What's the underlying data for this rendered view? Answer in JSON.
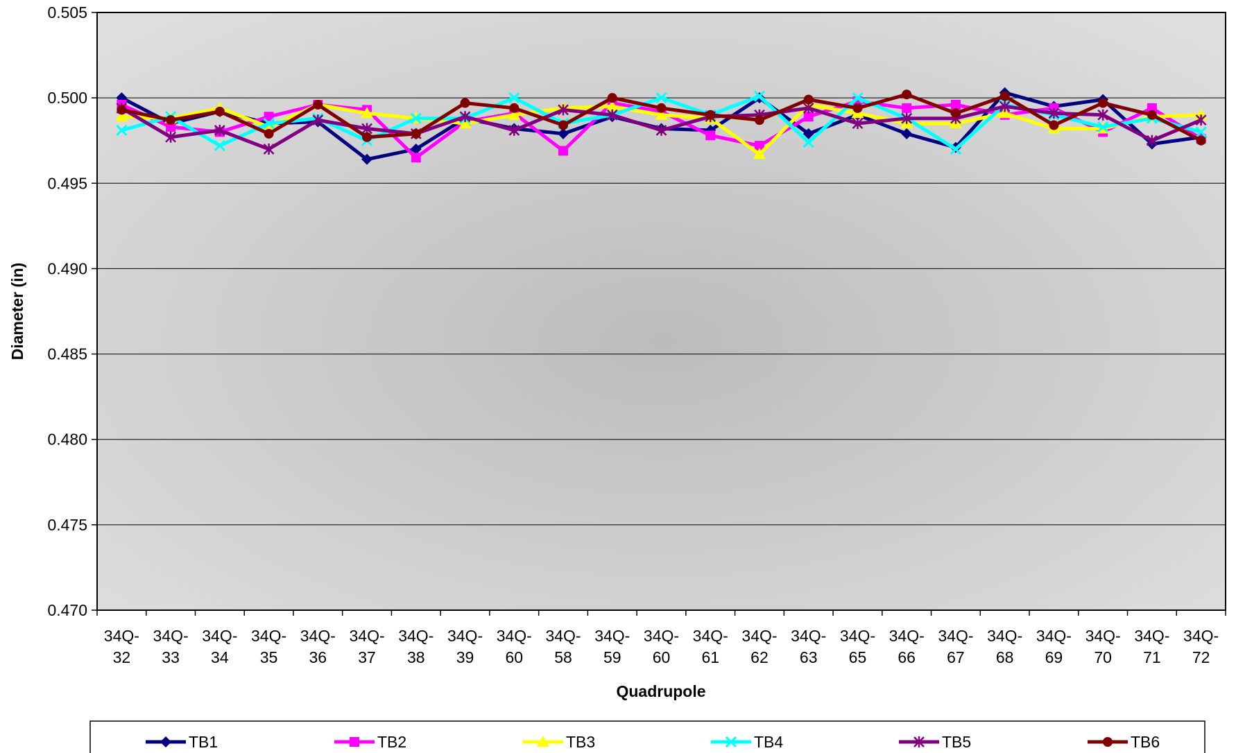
{
  "chart_data": {
    "type": "line",
    "title": "",
    "xlabel": "Quadrupole",
    "ylabel": "Diameter (in)",
    "ylim": [
      0.47,
      0.505
    ],
    "yticks": [
      "0.470",
      "0.475",
      "0.480",
      "0.485",
      "0.490",
      "0.495",
      "0.500",
      "0.505"
    ],
    "categories": [
      [
        "34Q-",
        "32"
      ],
      [
        "34Q-",
        "33"
      ],
      [
        "34Q-",
        "34"
      ],
      [
        "34Q-",
        "35"
      ],
      [
        "34Q-",
        "36"
      ],
      [
        "34Q-",
        "37"
      ],
      [
        "34Q-",
        "38"
      ],
      [
        "34Q-",
        "39"
      ],
      [
        "34Q-",
        "60"
      ],
      [
        "34Q-",
        "58"
      ],
      [
        "34Q-",
        "59"
      ],
      [
        "34Q-",
        "60"
      ],
      [
        "34Q-",
        "61"
      ],
      [
        "34Q-",
        "62"
      ],
      [
        "34Q-",
        "63"
      ],
      [
        "34Q-",
        "65"
      ],
      [
        "34Q-",
        "66"
      ],
      [
        "34Q-",
        "67"
      ],
      [
        "34Q-",
        "68"
      ],
      [
        "34Q-",
        "69"
      ],
      [
        "34Q-",
        "70"
      ],
      [
        "34Q-",
        "71"
      ],
      [
        "34Q-",
        "72"
      ]
    ],
    "grid": true,
    "legend_position": "bottom",
    "series": [
      {
        "name": "TB1",
        "color": "#000080",
        "marker": "diamond",
        "values": [
          0.5,
          0.4985,
          0.4992,
          0.4985,
          0.4986,
          0.4964,
          0.497,
          0.4988,
          0.4982,
          0.4979,
          0.4989,
          0.4982,
          0.4981,
          0.5,
          0.4979,
          0.499,
          0.4979,
          0.4971,
          0.5003,
          0.4995,
          0.4999,
          0.4973,
          0.4977
        ]
      },
      {
        "name": "TB2",
        "color": "#ff00ff",
        "marker": "square",
        "values": [
          0.4996,
          0.4983,
          0.498,
          0.4989,
          0.4996,
          0.4993,
          0.4965,
          0.4986,
          0.4991,
          0.4969,
          0.4997,
          0.4992,
          0.4978,
          0.4972,
          0.4989,
          0.4998,
          0.4994,
          0.4996,
          0.499,
          0.4994,
          0.498,
          0.4994,
          0.4976
        ]
      },
      {
        "name": "TB3",
        "color": "#ffff00",
        "marker": "triangle",
        "values": [
          0.4989,
          0.4988,
          0.4994,
          0.4983,
          0.4996,
          0.4991,
          0.4988,
          0.4985,
          0.499,
          0.4994,
          0.4995,
          0.499,
          0.4988,
          0.4967,
          0.4996,
          0.4991,
          0.4985,
          0.4985,
          0.4991,
          0.4982,
          0.4982,
          0.4989,
          0.499
        ]
      },
      {
        "name": "TB4",
        "color": "#00ffff",
        "marker": "x",
        "values": [
          0.4981,
          0.4989,
          0.4972,
          0.4985,
          0.4988,
          0.4975,
          0.4988,
          0.4988,
          0.5,
          0.4985,
          0.499,
          0.5,
          0.499,
          0.5001,
          0.4974,
          0.5,
          0.4988,
          0.497,
          0.4996,
          0.499,
          0.4983,
          0.4988,
          0.498
        ]
      },
      {
        "name": "TB5",
        "color": "#800080",
        "marker": "star",
        "values": [
          0.4994,
          0.4977,
          0.4981,
          0.497,
          0.4987,
          0.4982,
          0.4979,
          0.4989,
          0.4981,
          0.4993,
          0.499,
          0.4981,
          0.4989,
          0.499,
          0.4994,
          0.4985,
          0.4988,
          0.4988,
          0.4995,
          0.4991,
          0.499,
          0.4975,
          0.4987
        ]
      },
      {
        "name": "TB6",
        "color": "#800000",
        "marker": "circle",
        "values": [
          0.4993,
          0.4987,
          0.4992,
          0.4979,
          0.4996,
          0.4977,
          0.4979,
          0.4997,
          0.4994,
          0.4984,
          0.5,
          0.4994,
          0.499,
          0.4987,
          0.4999,
          0.4994,
          0.5002,
          0.4991,
          0.5001,
          0.4984,
          0.4997,
          0.499,
          0.4975
        ]
      }
    ]
  }
}
